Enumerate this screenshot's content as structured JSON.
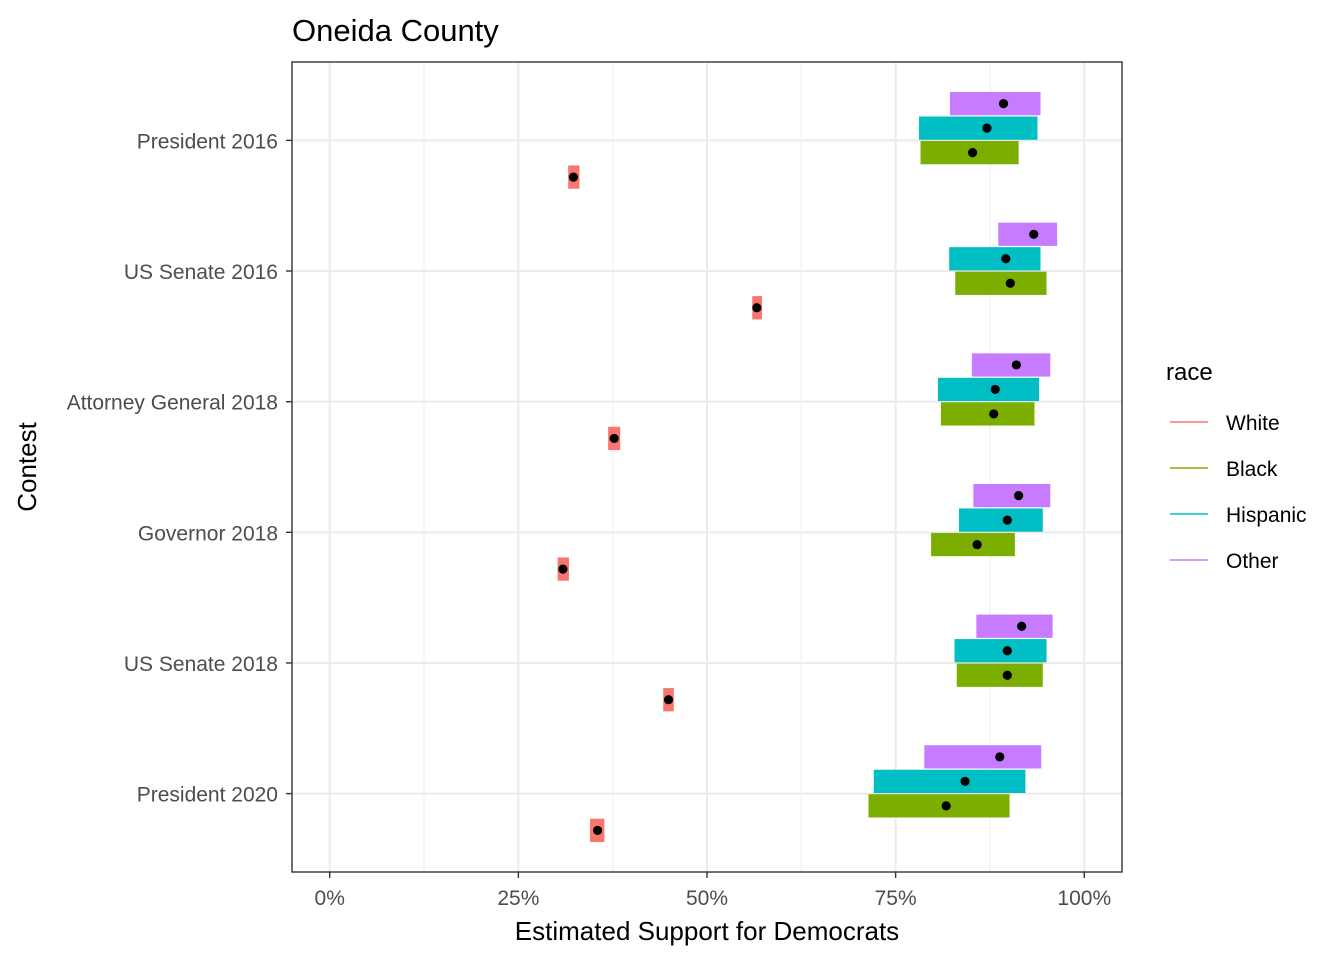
{
  "chart_data": {
    "type": "interval",
    "title": "Oneida County",
    "xlabel": "Estimated Support for Democrats",
    "ylabel": "Contest",
    "xlim": [
      -0.05,
      1.05
    ],
    "x_ticks": [
      0,
      0.25,
      0.5,
      0.75,
      1.0
    ],
    "x_tick_labels": [
      "0%",
      "25%",
      "50%",
      "75%",
      "100%"
    ],
    "grid": true,
    "legend_position": "right",
    "categories": [
      "President 2016",
      "US Senate 2016",
      "Attorney General 2018",
      "Governor 2018",
      "US Senate 2018",
      "President 2020"
    ],
    "legend": {
      "title": "race",
      "entries": [
        "White",
        "Black",
        "Hispanic",
        "Other"
      ]
    },
    "series": [
      {
        "name": "White",
        "color": "#F8766D",
        "values": [
          {
            "estimate": 0.323,
            "lower": 0.316,
            "upper": 0.331
          },
          {
            "estimate": 0.566,
            "lower": 0.56,
            "upper": 0.573
          },
          {
            "estimate": 0.377,
            "lower": 0.369,
            "upper": 0.385
          },
          {
            "estimate": 0.309,
            "lower": 0.302,
            "upper": 0.317
          },
          {
            "estimate": 0.449,
            "lower": 0.442,
            "upper": 0.456
          },
          {
            "estimate": 0.355,
            "lower": 0.345,
            "upper": 0.364
          }
        ]
      },
      {
        "name": "Black",
        "color": "#7CAE00",
        "values": [
          {
            "estimate": 0.852,
            "lower": 0.783,
            "upper": 0.913
          },
          {
            "estimate": 0.902,
            "lower": 0.829,
            "upper": 0.95
          },
          {
            "estimate": 0.88,
            "lower": 0.81,
            "upper": 0.934
          },
          {
            "estimate": 0.858,
            "lower": 0.797,
            "upper": 0.908
          },
          {
            "estimate": 0.898,
            "lower": 0.831,
            "upper": 0.945
          },
          {
            "estimate": 0.817,
            "lower": 0.714,
            "upper": 0.901
          }
        ]
      },
      {
        "name": "Hispanic",
        "color": "#00BFC4",
        "values": [
          {
            "estimate": 0.871,
            "lower": 0.781,
            "upper": 0.938
          },
          {
            "estimate": 0.896,
            "lower": 0.821,
            "upper": 0.942
          },
          {
            "estimate": 0.882,
            "lower": 0.806,
            "upper": 0.94
          },
          {
            "estimate": 0.898,
            "lower": 0.834,
            "upper": 0.945
          },
          {
            "estimate": 0.898,
            "lower": 0.828,
            "upper": 0.95
          },
          {
            "estimate": 0.842,
            "lower": 0.721,
            "upper": 0.922
          }
        ]
      },
      {
        "name": "Other",
        "color": "#C77CFF",
        "values": [
          {
            "estimate": 0.893,
            "lower": 0.822,
            "upper": 0.942
          },
          {
            "estimate": 0.933,
            "lower": 0.886,
            "upper": 0.964
          },
          {
            "estimate": 0.91,
            "lower": 0.851,
            "upper": 0.955
          },
          {
            "estimate": 0.913,
            "lower": 0.853,
            "upper": 0.955
          },
          {
            "estimate": 0.917,
            "lower": 0.857,
            "upper": 0.958
          },
          {
            "estimate": 0.888,
            "lower": 0.788,
            "upper": 0.943
          }
        ]
      }
    ]
  }
}
